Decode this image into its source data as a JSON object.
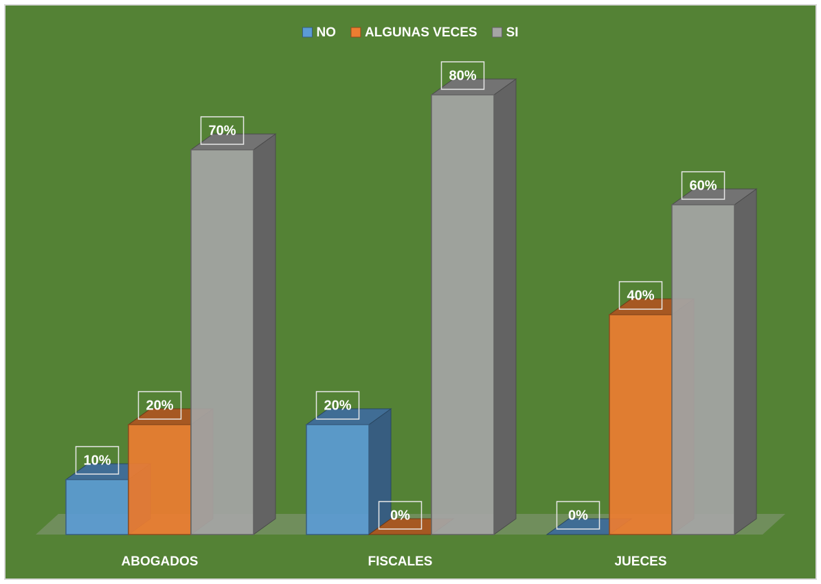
{
  "chart_data": {
    "type": "bar3d",
    "categories": [
      "ABOGADOS",
      "FISCALES",
      "JUECES"
    ],
    "series": [
      {
        "name": "NO",
        "color": "#5b9bd5",
        "values": [
          10,
          20,
          0
        ],
        "value_labels": [
          "10%",
          "20%",
          "0%"
        ]
      },
      {
        "name": "ALGUNAS VECES",
        "color": "#ed7d31",
        "values": [
          20,
          0,
          40
        ],
        "value_labels": [
          "20%",
          "0%",
          "40%"
        ]
      },
      {
        "name": "SI",
        "color": "#a5a5a5",
        "values": [
          70,
          80,
          60
        ],
        "value_labels": [
          "70%",
          "80%",
          "60%"
        ]
      }
    ],
    "legend": "top"
  }
}
